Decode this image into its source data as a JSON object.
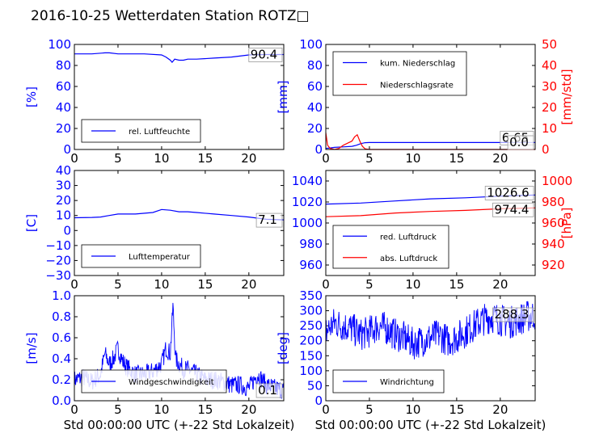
{
  "title": "2016-10-25 Wetterdaten Station ROTZ□",
  "colors": {
    "blue": "#0000ff",
    "red": "#ff0000",
    "axis": "#000000"
  },
  "chart_data": [
    {
      "id": "humidity",
      "type": "line",
      "xlabel": "",
      "ylabel": "[%]",
      "xlim": [
        0,
        24
      ],
      "ylim": [
        0,
        100
      ],
      "xticks": [
        "0",
        "5",
        "10",
        "15",
        "20"
      ],
      "yticks": [
        "0",
        "20",
        "40",
        "60",
        "80",
        "100"
      ],
      "legend": [
        {
          "label": "rel. Luftfeuchte",
          "color": "#0000ff"
        }
      ],
      "legend_position": "lower-left",
      "last_value_label": "90.4",
      "series": [
        {
          "name": "rel. Luftfeuchte",
          "color": "#0000ff",
          "x": [
            0,
            2,
            3.5,
            4,
            5,
            6,
            8,
            10,
            10.5,
            11,
            11.2,
            11.5,
            12,
            12.5,
            13,
            14,
            16,
            18,
            20,
            22,
            24
          ],
          "y": [
            91,
            91,
            92,
            92,
            91,
            91,
            91,
            90,
            88,
            85,
            83,
            86,
            85,
            85,
            86,
            86,
            87,
            88,
            90,
            90.4,
            90.4
          ]
        }
      ]
    },
    {
      "id": "precipitation",
      "type": "line",
      "xlabel": "",
      "ylabel": "[mm]",
      "ylabel_right": "[mm/std]",
      "xlim": [
        0,
        24
      ],
      "ylim": [
        0,
        100
      ],
      "ylim_right": [
        0,
        50
      ],
      "xticks": [
        "0",
        "5",
        "10",
        "15",
        "20"
      ],
      "yticks": [
        "0",
        "20",
        "40",
        "60",
        "80",
        "100"
      ],
      "yticks_right": [
        "0",
        "10",
        "20",
        "30",
        "40",
        "50"
      ],
      "legend": [
        {
          "label": "kum. Niederschlag",
          "color": "#0000ff"
        },
        {
          "label": "Niederschlagsrate",
          "color": "#ff0000"
        }
      ],
      "legend_position": "upper-left",
      "last_value_labels": [
        "6.65",
        "0.0"
      ],
      "series": [
        {
          "name": "kum. Niederschlag",
          "color": "#0000ff",
          "axis": "left",
          "x": [
            0,
            0.5,
            1,
            2,
            3,
            3.5,
            4,
            4.5,
            5,
            24
          ],
          "y": [
            1,
            1.5,
            2,
            2.5,
            3,
            4,
            5.5,
            6.5,
            6.65,
            6.65
          ]
        },
        {
          "name": "Niederschlagsrate",
          "color": "#ff0000",
          "axis": "right",
          "x": [
            0,
            0.2,
            0.5,
            1,
            1.5,
            2,
            2.5,
            3,
            3.3,
            3.6,
            3.9,
            4.2,
            4.5,
            5,
            24
          ],
          "y": [
            8,
            2,
            0.5,
            0,
            0.5,
            2,
            3,
            4,
            6,
            7,
            4,
            1.5,
            0.3,
            0,
            0
          ]
        }
      ]
    },
    {
      "id": "temperature",
      "type": "line",
      "xlabel": "",
      "ylabel": "[C]",
      "xlim": [
        0,
        24
      ],
      "ylim": [
        -30,
        40
      ],
      "xticks": [
        "0",
        "5",
        "10",
        "15",
        "20"
      ],
      "yticks": [
        "−30",
        "−20",
        "−10",
        "0",
        "10",
        "20",
        "30",
        "40"
      ],
      "yvals": [
        -30,
        -20,
        -10,
        0,
        10,
        20,
        30,
        40
      ],
      "legend": [
        {
          "label": "Lufttemperatur",
          "color": "#0000ff"
        }
      ],
      "legend_position": "lower-left",
      "last_value_label": "7.1",
      "series": [
        {
          "name": "Lufttemperatur",
          "color": "#0000ff",
          "x": [
            0,
            2,
            3,
            4,
            5,
            7,
            9,
            10,
            11,
            12,
            13,
            14,
            16,
            18,
            20,
            22,
            24
          ],
          "y": [
            8.5,
            8.7,
            9,
            10,
            11,
            11,
            12,
            14,
            13.5,
            12.5,
            12.5,
            12,
            11,
            10,
            9,
            7.5,
            7.1
          ]
        }
      ]
    },
    {
      "id": "pressure",
      "type": "line",
      "xlabel": "",
      "ylabel": "",
      "ylabel_right": "[hPa]",
      "xlim": [
        0,
        24
      ],
      "ylim": [
        950,
        1050
      ],
      "ylim_right": [
        910,
        1010
      ],
      "xticks": [
        "0",
        "5",
        "10",
        "15",
        "20"
      ],
      "yticks": [
        "960",
        "980",
        "1000",
        "1020",
        "1040"
      ],
      "yvals": [
        960,
        980,
        1000,
        1020,
        1040
      ],
      "yticks_right": [
        "920",
        "940",
        "960",
        "980",
        "1000"
      ],
      "yvals_right": [
        920,
        940,
        960,
        980,
        1000
      ],
      "legend": [
        {
          "label": "red. Luftdruck",
          "color": "#0000ff"
        },
        {
          "label": "abs. Luftdruck",
          "color": "#ff0000"
        }
      ],
      "legend_position": "lower-left",
      "last_value_labels": [
        "1026.6",
        "974.4"
      ],
      "series": [
        {
          "name": "red. Luftdruck",
          "color": "#0000ff",
          "axis": "left",
          "x": [
            0,
            4,
            8,
            12,
            16,
            20,
            24
          ],
          "y": [
            1018,
            1019,
            1021,
            1023,
            1024,
            1025.5,
            1026.6
          ]
        },
        {
          "name": "abs. Luftdruck",
          "color": "#ff0000",
          "axis": "right",
          "x": [
            0,
            4,
            8,
            12,
            16,
            20,
            24
          ],
          "y": [
            966,
            967,
            969.5,
            971,
            972,
            973.5,
            974.4
          ]
        }
      ]
    },
    {
      "id": "windspeed",
      "type": "line",
      "xlabel": "Std 00:00:00 UTC (+-22 Std Lokalzeit)",
      "ylabel": "[m/s]",
      "xlim": [
        0,
        24
      ],
      "ylim": [
        0,
        1
      ],
      "xticks": [
        "0",
        "5",
        "10",
        "15",
        "20"
      ],
      "yticks": [
        "0.0",
        "0.2",
        "0.4",
        "0.6",
        "0.8",
        "1.0"
      ],
      "legend": [
        {
          "label": "Windgeschwindigkeit",
          "color": "#0000ff"
        }
      ],
      "legend_position": "lower-center",
      "last_value_label": "0.1",
      "series": [
        {
          "name": "Windgeschwindigkeit",
          "color": "#0000ff",
          "noisy": true,
          "x": [
            0,
            1,
            2,
            3,
            3.5,
            4,
            4.5,
            5,
            5.5,
            6,
            7,
            8,
            9,
            10,
            10.5,
            11,
            11.3,
            11.6,
            12,
            12.5,
            13,
            14,
            15,
            16,
            17,
            18,
            19,
            20,
            21,
            22,
            23,
            24
          ],
          "y": [
            0.2,
            0.22,
            0.18,
            0.25,
            0.45,
            0.35,
            0.4,
            0.5,
            0.38,
            0.32,
            0.25,
            0.25,
            0.28,
            0.35,
            0.5,
            0.45,
            0.9,
            0.4,
            0.35,
            0.3,
            0.3,
            0.25,
            0.2,
            0.2,
            0.18,
            0.15,
            0.15,
            0.12,
            0.25,
            0.15,
            0.12,
            0.1
          ]
        }
      ]
    },
    {
      "id": "winddirection",
      "type": "line",
      "xlabel": "Std 00:00:00 UTC (+-22 Std Lokalzeit)",
      "ylabel": "[deg]",
      "xlim": [
        0,
        24
      ],
      "ylim": [
        0,
        350
      ],
      "xticks": [
        "0",
        "5",
        "10",
        "15",
        "20"
      ],
      "yticks": [
        "0",
        "50",
        "100",
        "150",
        "200",
        "250",
        "300",
        "350"
      ],
      "legend": [
        {
          "label": "Windrichtung",
          "color": "#0000ff"
        }
      ],
      "legend_position": "lower-left",
      "last_value_label": "288.3",
      "series": [
        {
          "name": "Windrichtung",
          "color": "#0000ff",
          "noisy": true,
          "x": [
            0,
            1,
            2,
            3,
            4,
            5,
            6,
            7,
            8,
            9,
            10,
            11,
            12,
            13,
            14,
            15,
            16,
            17,
            18,
            19,
            20,
            21,
            22,
            23,
            24
          ],
          "y": [
            230,
            260,
            250,
            240,
            220,
            230,
            250,
            240,
            220,
            210,
            190,
            200,
            210,
            220,
            200,
            210,
            230,
            250,
            270,
            280,
            270,
            260,
            270,
            280,
            288
          ]
        }
      ]
    }
  ]
}
